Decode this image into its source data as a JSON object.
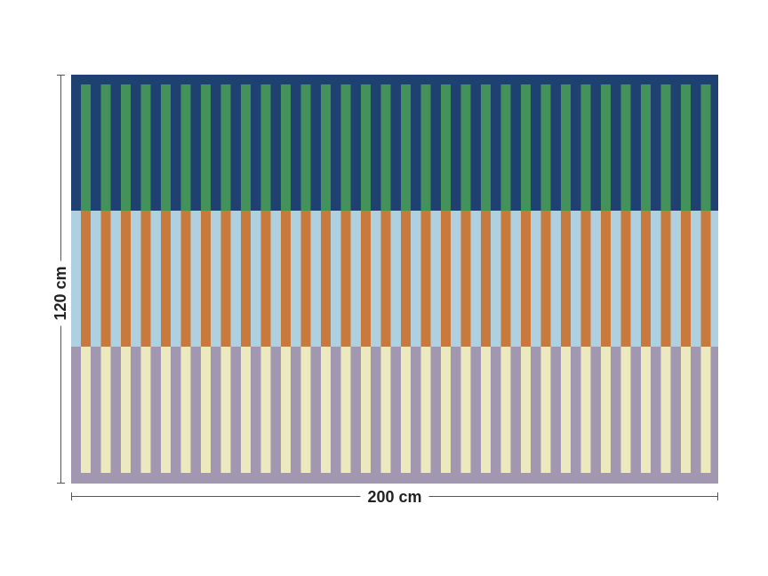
{
  "dimensions": {
    "height_label": "120 cm",
    "width_label": "200 cm"
  },
  "pattern": {
    "bands": [
      {
        "name": "top",
        "background": "#1f4172",
        "stripe": "#44915a",
        "stripes_reach_band_bottom": true
      },
      {
        "name": "middle",
        "background": "#afd0e0",
        "stripe": "#c87a3c",
        "stripes_reach_band_bottom": true
      },
      {
        "name": "bottom",
        "background": "#a297b1",
        "stripe": "#ebe9bd",
        "stripes_reach_band_bottom": false
      }
    ],
    "stripe_count": 32
  }
}
